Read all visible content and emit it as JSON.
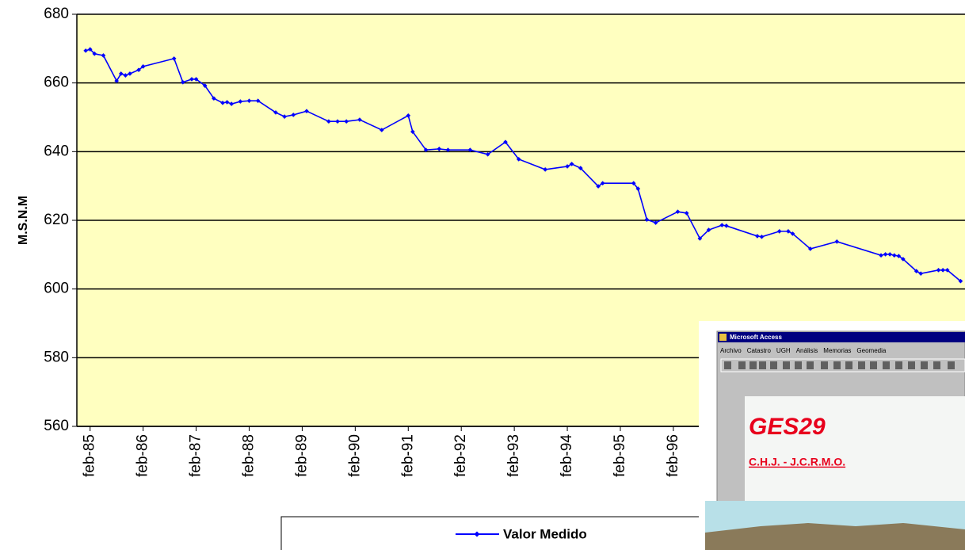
{
  "chart_data": {
    "type": "line",
    "y_label": "M.S.N.M",
    "x": [
      "1985-01",
      "1985-02",
      "1985-03",
      "1985-05",
      "1985-08",
      "1985-09",
      "1985-10",
      "1985-11",
      "1986-01",
      "1986-02",
      "1986-09",
      "1986-11",
      "1987-01",
      "1987-02",
      "1987-04",
      "1987-06",
      "1987-08",
      "1987-09",
      "1987-10",
      "1987-12",
      "1988-02",
      "1988-04",
      "1988-08",
      "1988-10",
      "1988-12",
      "1989-03",
      "1989-08",
      "1989-10",
      "1989-12",
      "1990-03",
      "1990-08",
      "1991-02",
      "1991-03",
      "1991-06",
      "1991-09",
      "1991-11",
      "1992-04",
      "1992-08",
      "1992-12",
      "1993-03",
      "1993-09",
      "1994-02",
      "1994-03",
      "1994-05",
      "1994-09",
      "1994-10",
      "1995-05",
      "1995-06",
      "1995-08",
      "1995-10",
      "1996-03",
      "1996-05",
      "1996-08",
      "1996-10",
      "1997-01",
      "1997-02",
      "1997-09",
      "1997-10",
      "1998-02",
      "1998-04",
      "1998-05",
      "1998-09",
      "1999-03",
      "2000-01",
      "2000-02",
      "2000-03",
      "2000-04",
      "2000-05",
      "2000-06",
      "2000-09",
      "2000-10",
      "2001-02",
      "2001-03",
      "2001-04",
      "2001-07"
    ],
    "series": [
      {
        "name": "Valor Medido",
        "color": "#0000ff",
        "values": [
          669.4,
          669.8,
          668.5,
          668.0,
          660.6,
          662.7,
          662.2,
          662.7,
          663.8,
          664.8,
          667.1,
          660.2,
          661.1,
          661.1,
          659.2,
          655.5,
          654.2,
          654.4,
          653.9,
          654.6,
          654.8,
          654.8,
          651.4,
          650.2,
          650.7,
          651.8,
          648.8,
          648.8,
          648.8,
          649.3,
          646.3,
          650.5,
          645.8,
          640.5,
          640.8,
          640.5,
          640.5,
          639.2,
          642.8,
          637.8,
          634.8,
          635.7,
          636.4,
          635.2,
          629.9,
          630.8,
          630.8,
          629.2,
          620.2,
          619.3,
          622.5,
          622.1,
          614.7,
          617.2,
          618.6,
          618.4,
          615.4,
          615.2,
          616.8,
          616.8,
          616.1,
          611.7,
          613.8,
          609.8,
          610.1,
          610.1,
          609.8,
          609.6,
          608.7,
          605.2,
          604.5,
          605.5,
          605.5,
          605.5,
          602.3
        ]
      }
    ],
    "xlim": [
      "1984-11",
      "2001-08"
    ],
    "xticks": [
      {
        "value": "1985-02",
        "label": "feb-85"
      },
      {
        "value": "1986-02",
        "label": "feb-86"
      },
      {
        "value": "1987-02",
        "label": "feb-87"
      },
      {
        "value": "1988-02",
        "label": "feb-88"
      },
      {
        "value": "1989-02",
        "label": "feb-89"
      },
      {
        "value": "1990-02",
        "label": "feb-90"
      },
      {
        "value": "1991-02",
        "label": "feb-91"
      },
      {
        "value": "1992-02",
        "label": "feb-92"
      },
      {
        "value": "1993-02",
        "label": "feb-93"
      },
      {
        "value": "1994-02",
        "label": "feb-94"
      },
      {
        "value": "1995-02",
        "label": "feb-95"
      },
      {
        "value": "1996-02",
        "label": "feb-96"
      }
    ],
    "ylim": [
      560,
      680
    ],
    "yticks": [
      560,
      580,
      600,
      620,
      640,
      660,
      680
    ],
    "grid": true
  },
  "overlay": {
    "window_title": "Microsoft Access",
    "menu": [
      "Archivo",
      "Catastro",
      "UGH",
      "Análisis",
      "Memorias",
      "Geomedia"
    ],
    "title": "GES29",
    "subtitle": "C.H.J. - J.C.R.M.O."
  }
}
